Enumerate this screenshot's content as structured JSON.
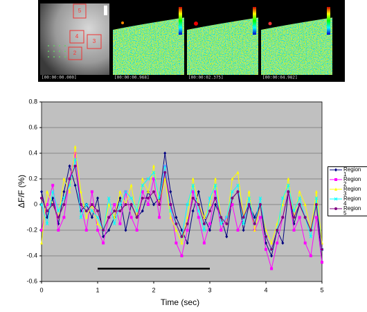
{
  "images": {
    "timestamps": [
      "[00:00:00.000]",
      "[00:00:00.968]",
      "[00:00:02.375]",
      "[00:00:04.982]"
    ],
    "region_labels": [
      "5",
      "4",
      "3",
      "2"
    ]
  },
  "chart_data": {
    "type": "line",
    "xlabel": "Time (sec)",
    "ylabel": "ΔF/F (%)",
    "x": [
      0,
      0.1,
      0.2,
      0.3,
      0.4,
      0.5,
      0.6,
      0.7,
      0.8,
      0.9,
      1.0,
      1.1,
      1.2,
      1.3,
      1.4,
      1.5,
      1.6,
      1.7,
      1.8,
      1.9,
      2.0,
      2.1,
      2.2,
      2.3,
      2.4,
      2.5,
      2.6,
      2.7,
      2.8,
      2.9,
      3.0,
      3.1,
      3.2,
      3.3,
      3.4,
      3.5,
      3.6,
      3.7,
      3.8,
      3.9,
      4.0,
      4.1,
      4.2,
      4.3,
      4.4,
      4.5,
      4.6,
      4.7,
      4.8,
      4.9,
      5.0
    ],
    "series": [
      {
        "name": "Region 1",
        "color": "#000080",
        "marker": "diamond",
        "values": [
          0.1,
          -0.1,
          0.05,
          -0.15,
          0.1,
          0.3,
          0.15,
          -0.05,
          0.0,
          -0.1,
          0.05,
          -0.25,
          -0.2,
          -0.1,
          0.05,
          -0.2,
          0.0,
          -0.1,
          -0.05,
          0.1,
          0.0,
          0.05,
          0.4,
          0.1,
          -0.1,
          -0.2,
          -0.3,
          -0.05,
          0.1,
          -0.1,
          -0.2,
          0.0,
          -0.1,
          -0.25,
          0.05,
          0.1,
          -0.2,
          0.0,
          -0.1,
          0.0,
          -0.3,
          -0.4,
          -0.2,
          -0.3,
          0.1,
          -0.15,
          0.0,
          -0.1,
          -0.2,
          0.0,
          -0.45
        ]
      },
      {
        "name": "Region 2",
        "color": "#ff00ff",
        "marker": "square",
        "values": [
          -0.2,
          0.0,
          0.15,
          -0.2,
          -0.1,
          0.2,
          0.4,
          0.0,
          -0.2,
          0.1,
          -0.2,
          -0.3,
          -0.1,
          0.0,
          -0.15,
          0.1,
          -0.1,
          -0.2,
          0.1,
          0.0,
          0.2,
          -0.1,
          0.3,
          0.0,
          -0.3,
          -0.4,
          -0.2,
          0.1,
          -0.1,
          -0.3,
          -0.15,
          0.1,
          -0.2,
          -0.1,
          0.0,
          -0.2,
          -0.1,
          0.0,
          -0.2,
          -0.1,
          -0.35,
          -0.5,
          -0.3,
          -0.1,
          0.1,
          -0.2,
          -0.1,
          -0.3,
          -0.4,
          -0.1,
          -0.45
        ]
      },
      {
        "name": "Region 3",
        "color": "#ffff00",
        "marker": "triangle",
        "values": [
          -0.3,
          0.1,
          0.0,
          -0.1,
          0.2,
          0.1,
          0.45,
          0.1,
          -0.1,
          0.0,
          -0.15,
          -0.2,
          0.0,
          -0.1,
          0.1,
          0.0,
          0.15,
          -0.1,
          0.2,
          0.1,
          0.3,
          0.0,
          0.2,
          -0.1,
          -0.2,
          -0.3,
          -0.1,
          0.2,
          0.0,
          -0.1,
          0.0,
          0.2,
          -0.1,
          -0.15,
          0.2,
          0.25,
          -0.1,
          0.1,
          -0.2,
          0.0,
          -0.2,
          -0.3,
          -0.15,
          0.0,
          0.2,
          -0.1,
          0.1,
          0.0,
          -0.2,
          0.1,
          -0.3
        ]
      },
      {
        "name": "Region 4",
        "color": "#00ffff",
        "marker": "cross",
        "values": [
          0.0,
          -0.15,
          0.1,
          -0.05,
          0.05,
          0.15,
          0.35,
          -0.1,
          0.0,
          -0.05,
          -0.1,
          -0.2,
          0.05,
          -0.15,
          0.0,
          0.1,
          0.05,
          -0.05,
          0.15,
          0.2,
          0.25,
          0.05,
          0.3,
          -0.05,
          -0.15,
          -0.25,
          0.0,
          0.15,
          -0.05,
          -0.2,
          0.05,
          0.15,
          -0.15,
          -0.1,
          0.1,
          0.15,
          -0.15,
          0.05,
          -0.15,
          0.05,
          -0.25,
          -0.35,
          -0.2,
          0.05,
          0.15,
          -0.05,
          0.05,
          -0.1,
          -0.25,
          0.05,
          -0.35
        ]
      },
      {
        "name": "Region 5",
        "color": "#800080",
        "marker": "circle",
        "values": [
          0.05,
          -0.05,
          0.0,
          -0.1,
          0.0,
          0.2,
          0.3,
          0.0,
          -0.05,
          0.0,
          -0.05,
          -0.2,
          -0.1,
          -0.05,
          -0.05,
          0.0,
          0.0,
          -0.1,
          0.05,
          0.05,
          0.1,
          0.0,
          0.25,
          0.0,
          -0.15,
          -0.25,
          -0.15,
          0.05,
          0.0,
          -0.15,
          -0.05,
          0.05,
          -0.1,
          -0.15,
          0.05,
          0.1,
          -0.1,
          0.0,
          -0.15,
          0.0,
          -0.25,
          -0.35,
          -0.2,
          -0.1,
          0.1,
          -0.1,
          0.0,
          -0.1,
          -0.2,
          0.0,
          -0.35
        ]
      }
    ],
    "stimulus_bar": {
      "x": [
        1.0,
        3.0
      ],
      "y": -0.5
    },
    "xlim": [
      0,
      5
    ],
    "xticks": [
      0,
      1,
      2,
      3,
      4,
      5
    ],
    "ylim": [
      -0.6,
      0.8
    ],
    "yticks": [
      -0.6,
      -0.4,
      -0.2,
      0,
      0.2,
      0.4,
      0.6,
      0.8
    ],
    "grid": true,
    "background": "#c0c0c0",
    "legend": "right"
  }
}
